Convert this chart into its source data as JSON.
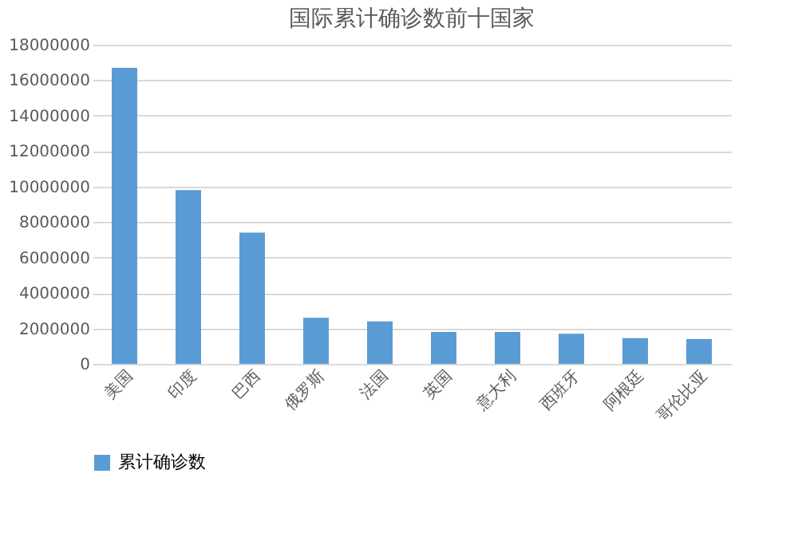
{
  "chart_data": {
    "type": "bar",
    "title": "国际累计确诊数前十国家",
    "categories": [
      "美国",
      "印度",
      "巴西",
      "俄罗斯",
      "法国",
      "英国",
      "意大利",
      "西班牙",
      "阿根廷",
      "哥伦比亚"
    ],
    "series": [
      {
        "name": "累计确诊数",
        "color": "#5b9bd5",
        "values": [
          16700000,
          9800000,
          7400000,
          2600000,
          2400000,
          1800000,
          1800000,
          1700000,
          1450000,
          1400000
        ]
      }
    ],
    "ylim": [
      0,
      18000000
    ],
    "yticks": [
      0,
      2000000,
      4000000,
      6000000,
      8000000,
      10000000,
      12000000,
      14000000,
      16000000,
      18000000
    ],
    "grid": "y",
    "legend": "bottom"
  }
}
